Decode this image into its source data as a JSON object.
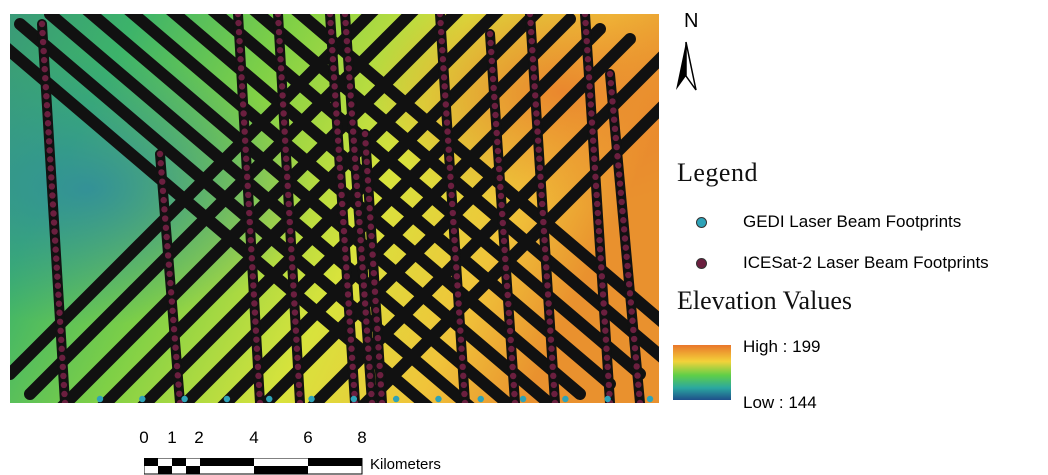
{
  "map": {
    "north_label": "N",
    "colors": {
      "high": "#e8762a",
      "mid": "#d9e53a",
      "mid_low": "#3ec44e",
      "low": "#2f7fb1",
      "track": "#111111",
      "gedi_dot": "#2ea3b8",
      "icesat_dot": "#6b1f3f"
    }
  },
  "legend": {
    "title": "Legend",
    "items": [
      {
        "label": "GEDI Laser Beam Footprints",
        "color": "#2ea3b8",
        "icon": "gedi-dot"
      },
      {
        "label": "ICESat-2 Laser Beam Footprints",
        "color": "#6b1f3f",
        "icon": "icesat-dot"
      }
    ]
  },
  "elevation": {
    "title": "Elevation Values",
    "high_label": "High : 199",
    "low_label": "Low : 144"
  },
  "scale_bar": {
    "ticks": [
      "0",
      "1",
      "2",
      "4",
      "6",
      "8"
    ],
    "unit": "Kilometers"
  }
}
